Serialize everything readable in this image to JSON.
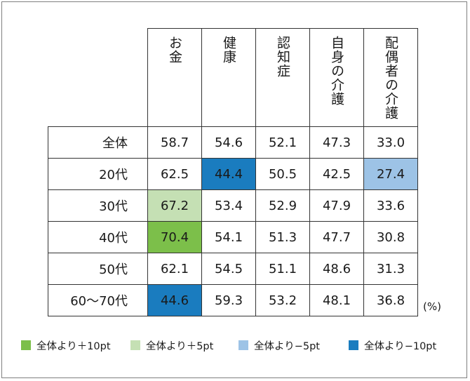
{
  "chart_data": {
    "type": "table",
    "unit": "(%)",
    "columns": [
      "お金",
      "健康",
      "認知症",
      "自身の介護",
      "配偶者の介護"
    ],
    "rows": [
      {
        "label": "全体",
        "values": [
          "58.7",
          "54.6",
          "52.1",
          "47.3",
          "33.0"
        ],
        "highlight": [
          "",
          "",
          "",
          "",
          ""
        ]
      },
      {
        "label": "20代",
        "values": [
          "62.5",
          "44.4",
          "50.5",
          "42.5",
          "27.4"
        ],
        "highlight": [
          "",
          "minus10",
          "",
          "",
          "minus5"
        ]
      },
      {
        "label": "30代",
        "values": [
          "67.2",
          "53.4",
          "52.9",
          "47.9",
          "33.6"
        ],
        "highlight": [
          "plus5",
          "",
          "",
          "",
          ""
        ]
      },
      {
        "label": "40代",
        "values": [
          "70.4",
          "54.1",
          "51.3",
          "47.7",
          "30.8"
        ],
        "highlight": [
          "plus10",
          "",
          "",
          "",
          ""
        ]
      },
      {
        "label": "50代",
        "values": [
          "62.1",
          "54.5",
          "51.1",
          "48.6",
          "31.3"
        ],
        "highlight": [
          "",
          "",
          "",
          "",
          ""
        ]
      },
      {
        "label": "60〜70代",
        "values": [
          "44.6",
          "59.3",
          "53.2",
          "48.1",
          "36.8"
        ],
        "highlight": [
          "minus10",
          "",
          "",
          "",
          ""
        ]
      }
    ],
    "legend": [
      {
        "key": "plus10",
        "label": "全体より＋10pt",
        "color": "#7cbf4a"
      },
      {
        "key": "plus5",
        "label": "全体より＋5pt",
        "color": "#c5e0b4"
      },
      {
        "key": "minus5",
        "label": "全体より−5pt",
        "color": "#9dc3e6"
      },
      {
        "key": "minus10",
        "label": "全体より−10pt",
        "color": "#1a7cbf"
      }
    ]
  }
}
